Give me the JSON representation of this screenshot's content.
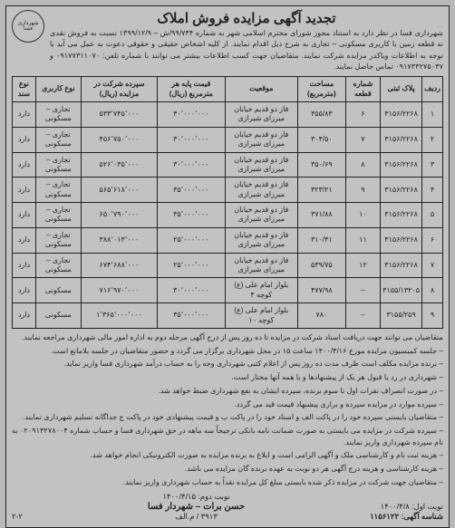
{
  "title": "تجدید آگهی مزایده فروش املاک",
  "logo_caption": "شهرداری فسا",
  "intro": "شهرداری فسا در نظر دارد به استناد مجوز شورای محترم اسلامی شهر به شماره ۹۹/۷۴۴/ش – ۱۳۹۹/۱۲/۹ نسبت به فروش نقدی نه قطعه زمین با کاربری مسکونی – تجاری به شرح ذیل اقدام نمایند. از کلیه اشخاص حقیقی و حقوقی دعوت به عمل می آید با توجه به اطلاعات ویاکدر مزایده شرکت نمایند. متقاضیان جهت کسب اطلاعات بیشتر می توانند با شماره تلفن: ۰۹۱۷۷۳۱۱۰۷۰ و ۰۹۱۷۳۳۲۷۵۰۳۷ تماس حاصل نمایند.",
  "columns": [
    "ردیف",
    "پلاک ثبتی",
    "شماره قطعه",
    "مساحت (مترمربع)",
    "موقعیت",
    "قیمت پایه هر مترمربع (ریال)",
    "سپرده شرکت در مزایده (ریال)",
    "نوع کاربری",
    "نوع سند"
  ],
  "rows": [
    [
      "۱",
      "۳۱۵۶/۲۲۶۸",
      "۶",
      "۳۵۵/۸۳",
      "فاز دو قدیم خیابان میرزای شیرازی",
      "۳۰٬۰۰۰٬۰۰۰",
      "۵۳۳٬۷۴۵٬۰۰۰",
      "تجاری – مسکونی",
      "دارد"
    ],
    [
      "۲",
      "۳۱۵۶/۲۲۶۸",
      "۷",
      "۳۰۴/۵۰",
      "فاز دو قدیم خیابان میرزای شیرازی",
      "۳۰٬۰۰۰٬۰۰۰",
      "۴۵۶٬۷۵۰٬۰۰۰",
      "تجاری – مسکونی",
      "دارد"
    ],
    [
      "۳",
      "۳۱۵۶/۲۲۶۸",
      "۸",
      "۳۵۰/۶۹",
      "فاز دو قدیم خیابان میرزای شیرازی",
      "۳۰٬۰۰۰٬۰۰۰",
      "۵۲۶٬۰۳۵٬۰۰۰",
      "تجاری – مسکونی",
      "دارد"
    ],
    [
      "۴",
      "۳۱۵۶/۲۲۶۸",
      "۹",
      "۳۲۳/۲۱",
      "فاز دو قدیم خیابان میرزای شیرازی",
      "۳۵٬۰۰۰٬۰۰۰",
      "۵۶۵٬۶۱۸٬۰۰۰",
      "تجاری – مسکونی",
      "دارد"
    ],
    [
      "۵",
      "۳۱۵۶/۲۲۶۸",
      "۱۰",
      "۳۷۱/۸۸",
      "فاز دو قدیم خیابان میرزای شیرازی",
      "۳۵٬۰۰۰٬۰۰۰",
      "۶۵۰٬۷۹۰٬۰۰۰",
      "تجاری – مسکونی",
      "دارد"
    ],
    [
      "۶",
      "۳۱۵۶/۲۲۶۸",
      "۱۱",
      "۳۱۰/۴۱",
      "فاز دو قدیم خیابان میرزای شیرازی",
      "۲۵٬۰۰۰٬۰۰۰",
      "۳۸۸٬۰۱۳٬۰۰۰",
      "تجاری – مسکونی",
      "دارد"
    ],
    [
      "۷",
      "۳۱۵۶/۲۲۶۸",
      "۱۲",
      "۵۳۹/۷۵",
      "فاز دو قدیم خیابان میرزای شیرازی",
      "۲۵٬۰۰۰٬۰۰۰",
      "۶۷۴٬۶۸۸٬۰۰۰",
      "تجاری – مسکونی",
      "دارد"
    ],
    [
      "۸",
      "۳۱۵۵/۱۳۲۰۵",
      "–",
      "۴۷۷/۹۸",
      "بلوار امام علی (ع) کوچه ۴",
      "۳۰٬۰۰۰٬۰۰۰",
      "۷۱۶٬۹۷۰٬۰۰۰",
      "مسکونی",
      "دارد"
    ],
    [
      "۹",
      "۳۱۵۵/۲۵۹",
      "–",
      "۷۸۰",
      "بلوار امام علی (ع) کوچه ۱۰",
      "۳۵٬۰۰۰٬۰۰۰",
      "۱٬۳۶۵٬۰۰۰٬۰۰۰",
      "مسکونی",
      "دارد"
    ]
  ],
  "notes": [
    "متقاضیان می توانند جهت دریافت اسناد شرکت در مزایده تا ده روز پس از درج آگهی مرحله دوم به اداره امور مالی شهرداری مراجعه نمایند.",
    "– جلسه کمیسیون مزایده مورخ ۱۴۰۰/۴/۱۶ ساعت ۱۵ در محل شهرداری برگزار می گردد و حضور متقاضیان در جلسه بلامانع است.",
    "– برنده مزایده مکلف است ظرف مدت ده روز پس از اعلام کتبی شهرداری وجه را به حساب درآمد شهرداری فسا واریز نماید.",
    "– شهرداری در رد یا قبول هر یک از پیشنهادها و یا همه آنها مختار است.",
    "– در صورت انصراف نفرات اول تا سوم برنده، سپرده ایشان به نفع شهرداری ضبط خواهد شد.",
    "– سپرده موارد در مزایده سپرده و براری پیشنهاد قیمت قید می گردد.",
    "– متقاضیان بایستی سپرده خود را در پاکت الف و اسناد خود را در پاکت ب و قیمت پیشنهادی خود در پاکت ج جداگانه تسلیم شهرداری نمایند.",
    "– سپرده شرکت در مزایده می بایستی به صورت ضمانت نامه بانکی ترجیحاً سه ماهه در حق شهرداری فسا و حساب شماره ۰۲۰۹۱۳۲۷۸۰۰۴ به نام سپرده شهرداری واریز نمایند.",
    "– هزینه ثبت نام و کارشناسی ملک و آگهی الزامی است و ابلاغ به برنده مزایده به صورت الکترونیکی انجام خواهد شد.",
    "– هزینه کارشناسی و هزینه درج آگهی هر دو نوبت به عهده برنده گان مزایده می باشد.",
    "– متقاضیان جهت شرکت در مزایده ذکر شده بایستی مبلغ کل مزایده نقداً به حساب شهرداری واریز نمایند."
  ],
  "nobat1": "نوبت اول: ۱۴۰۰/۴/۸",
  "nobat2": "نوبت دوم: ۱۴۰۰/۴/۱۵",
  "signature": "حسن برات – شهردار فسا",
  "ad_id_label": "شناسه آگهی:",
  "ad_id": "۱۱۵۶۱۲۲",
  "code1": "۳۹۱۳ / م.الف",
  "code2": "۲-۲"
}
